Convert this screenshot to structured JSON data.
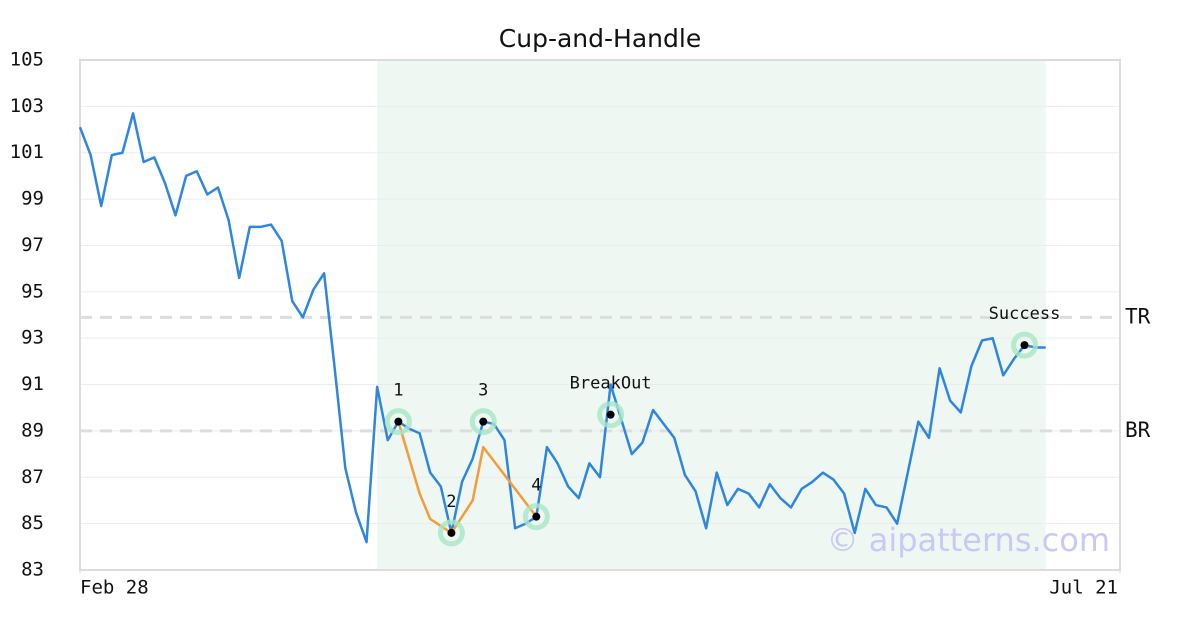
{
  "chart_data": {
    "type": "line",
    "title": "Cup-and-Handle",
    "xlim": [
      0,
      98
    ],
    "xticks": [
      {
        "value": 0,
        "label": "Feb 28"
      },
      {
        "value": 98,
        "label": "Jul 21"
      }
    ],
    "ylim": [
      83,
      105
    ],
    "yticks": [
      83,
      85,
      87,
      89,
      91,
      93,
      95,
      97,
      99,
      101,
      103,
      105
    ],
    "grid": true,
    "highlight": [
      28,
      91
    ],
    "highlight_color": "#eef7f2",
    "series": [
      {
        "color": "#2e86de",
        "x": [
          0,
          1,
          2,
          3,
          4,
          5,
          6,
          7,
          8,
          9,
          10,
          11,
          12,
          13,
          14,
          15,
          16,
          17,
          18,
          19,
          20,
          21,
          22,
          23,
          24,
          25,
          26,
          27,
          28,
          29,
          30,
          31,
          32,
          33,
          34,
          35,
          36,
          37,
          38,
          39,
          40,
          41,
          42,
          43,
          44,
          45,
          46,
          47,
          48,
          49,
          50,
          51,
          52,
          53,
          54,
          55,
          56,
          57,
          58,
          59,
          60,
          61,
          62,
          63,
          64,
          65,
          66,
          67,
          68,
          69,
          70,
          71,
          72,
          73,
          74,
          75,
          76,
          77,
          78,
          79,
          80,
          81,
          82,
          83,
          84,
          85,
          86,
          87,
          88,
          89,
          90,
          91
        ],
        "values": [
          102.1,
          100.9,
          98.7,
          100.9,
          101.0,
          102.7,
          100.6,
          100.8,
          99.7,
          98.3,
          100.0,
          100.2,
          99.2,
          99.5,
          98.1,
          95.6,
          97.8,
          97.8,
          97.9,
          97.2,
          94.6,
          93.9,
          95.1,
          95.8,
          91.7,
          87.4,
          85.5,
          84.2,
          90.9,
          88.6,
          89.4,
          89.1,
          88.9,
          87.2,
          86.6,
          84.6,
          86.8,
          87.8,
          89.4,
          89.3,
          88.6,
          84.8,
          85.0,
          85.3,
          88.3,
          87.6,
          86.6,
          86.1,
          87.6,
          87.0,
          91.0,
          89.5,
          88.0,
          88.5,
          89.9,
          89.3,
          88.7,
          87.1,
          86.4,
          84.8,
          87.2,
          85.8,
          86.5,
          86.3,
          85.7,
          86.7,
          86.1,
          85.7,
          86.5,
          86.8,
          87.2,
          86.9,
          86.3,
          84.6,
          86.5,
          85.8,
          85.7,
          85.0,
          87.2,
          89.4,
          88.7,
          91.7,
          90.3,
          89.8,
          91.8,
          92.9,
          93.0,
          91.4,
          92.1,
          92.7,
          92.6,
          92.6
        ]
      },
      {
        "color": "#f39c3c",
        "x": [
          30,
          32,
          33,
          35,
          37,
          38,
          43
        ],
        "values": [
          89.4,
          86.3,
          85.2,
          84.6,
          86.0,
          88.3,
          85.3
        ]
      }
    ],
    "levels": [
      {
        "label": "TR",
        "value": 93.9
      },
      {
        "label": "BR",
        "value": 89.0
      }
    ],
    "annotations": [
      {
        "label": "1",
        "x": 30,
        "y": 89.4
      },
      {
        "label": "2",
        "x": 35,
        "y": 84.6
      },
      {
        "label": "3",
        "x": 38,
        "y": 89.4
      },
      {
        "label": "4",
        "x": 43,
        "y": 85.3
      },
      {
        "label": "BreakOut",
        "x": 50,
        "y": 89.7
      },
      {
        "label": "Success",
        "x": 89,
        "y": 92.7
      }
    ],
    "watermark": "© aipatterns.com"
  }
}
